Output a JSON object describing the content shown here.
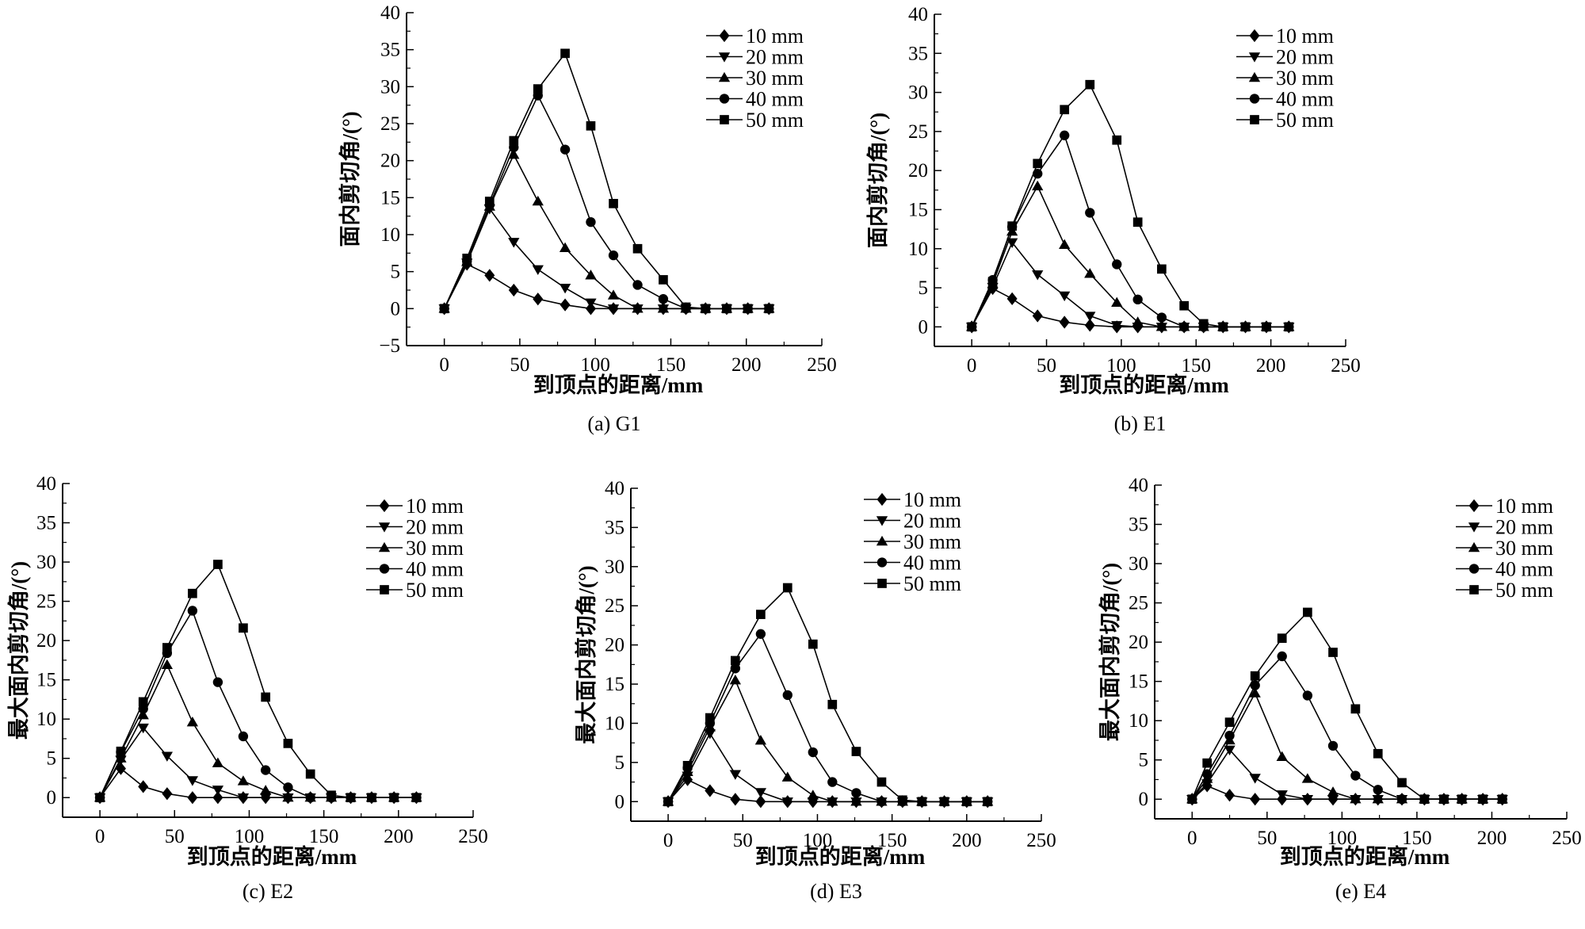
{
  "chart_data": [
    {
      "type": "line",
      "title": "(a) G1",
      "xlabel": "到顶点的距离/mm",
      "ylabel": "面内剪切角/(°)",
      "xlim": [
        -25,
        250
      ],
      "ylim": [
        -5,
        40
      ],
      "xticks": [
        0,
        50,
        100,
        150,
        200,
        250
      ],
      "yticks": [
        -5,
        0,
        5,
        10,
        15,
        20,
        25,
        30,
        35,
        40
      ],
      "legend": "top-right",
      "x": [
        0,
        15,
        30,
        46,
        62,
        80,
        97,
        112,
        128,
        145,
        160,
        173,
        187,
        201,
        215
      ],
      "series": [
        {
          "name": "10 mm",
          "marker": "diamond",
          "values": [
            0,
            6,
            4.5,
            2.5,
            1.3,
            0.5,
            0,
            0,
            0,
            0,
            0,
            0,
            0,
            0,
            0
          ]
        },
        {
          "name": "20 mm",
          "marker": "triangle-down",
          "values": [
            0,
            6.2,
            13.5,
            9,
            5.3,
            2.8,
            0.8,
            0,
            0,
            0,
            0,
            0,
            0,
            0,
            0
          ]
        },
        {
          "name": "30 mm",
          "marker": "triangle-up",
          "values": [
            0,
            6.3,
            13.8,
            20.8,
            14.5,
            8.2,
            4.5,
            1.8,
            0,
            0,
            0,
            0,
            0,
            0,
            0
          ]
        },
        {
          "name": "40 mm",
          "marker": "circle",
          "values": [
            0,
            6.4,
            14,
            21.8,
            28.8,
            21.5,
            11.7,
            7.2,
            3.2,
            1.3,
            0,
            0,
            0,
            0,
            0
          ]
        },
        {
          "name": "50 mm",
          "marker": "square",
          "values": [
            0,
            6.8,
            14.5,
            22.7,
            29.7,
            34.5,
            24.7,
            14.2,
            8.1,
            3.9,
            0.2,
            0,
            0,
            0,
            0
          ]
        }
      ]
    },
    {
      "type": "line",
      "title": "(b) E1",
      "xlabel": "到顶点的距离/mm",
      "ylabel": "面内剪切角/(°)",
      "xlim": [
        -25,
        250
      ],
      "ylim": [
        -2.5,
        40
      ],
      "xticks": [
        0,
        50,
        100,
        150,
        200,
        250
      ],
      "yticks": [
        0,
        5,
        10,
        15,
        20,
        25,
        30,
        35,
        40
      ],
      "legend": "top-right",
      "x": [
        0,
        14,
        27,
        44,
        62,
        79,
        97,
        111,
        127,
        142,
        155,
        168,
        183,
        197,
        212
      ],
      "series": [
        {
          "name": "10 mm",
          "marker": "diamond",
          "values": [
            0,
            4.9,
            3.6,
            1.4,
            0.6,
            0.2,
            0,
            0,
            0,
            0,
            0,
            0,
            0,
            0,
            0
          ]
        },
        {
          "name": "20 mm",
          "marker": "triangle-down",
          "values": [
            0,
            5.1,
            10.8,
            6.7,
            4,
            1.4,
            0.2,
            0,
            0,
            0,
            0,
            0,
            0,
            0,
            0
          ]
        },
        {
          "name": "30 mm",
          "marker": "triangle-up",
          "values": [
            0,
            5.5,
            12.2,
            18,
            10.5,
            6.8,
            3.1,
            0.6,
            0,
            0,
            0,
            0,
            0,
            0,
            0
          ]
        },
        {
          "name": "40 mm",
          "marker": "circle",
          "values": [
            0,
            6,
            12.8,
            19.6,
            24.5,
            14.6,
            8,
            3.5,
            1.2,
            0,
            0,
            0,
            0,
            0,
            0
          ]
        },
        {
          "name": "50 mm",
          "marker": "square",
          "values": [
            0,
            5.8,
            12.9,
            20.9,
            27.8,
            31,
            23.9,
            13.4,
            7.4,
            2.7,
            0.4,
            0,
            0,
            0,
            0
          ]
        }
      ]
    },
    {
      "type": "line",
      "title": "(c) E2",
      "xlabel": "到顶点的距离/mm",
      "ylabel": "最大面内剪切角/(°)",
      "xlim": [
        -25,
        250
      ],
      "ylim": [
        -2.5,
        40
      ],
      "xticks": [
        0,
        50,
        100,
        150,
        200,
        250
      ],
      "yticks": [
        0,
        5,
        10,
        15,
        20,
        25,
        30,
        35,
        40
      ],
      "legend": "top-right",
      "x": [
        0,
        14,
        29,
        45,
        62,
        79,
        96,
        111,
        126,
        141,
        155,
        168,
        182,
        197,
        212
      ],
      "series": [
        {
          "name": "10 mm",
          "marker": "diamond",
          "values": [
            0,
            3.7,
            1.4,
            0.5,
            0,
            0,
            0,
            0,
            0,
            0,
            0,
            0,
            0,
            0,
            0
          ]
        },
        {
          "name": "20 mm",
          "marker": "triangle-down",
          "values": [
            0,
            4.8,
            8.9,
            5.3,
            2.2,
            1,
            0,
            0,
            0,
            0,
            0,
            0,
            0,
            0,
            0
          ]
        },
        {
          "name": "30 mm",
          "marker": "triangle-up",
          "values": [
            0,
            5,
            10.5,
            16.9,
            9.6,
            4.4,
            2.1,
            0.9,
            0,
            0,
            0,
            0,
            0,
            0,
            0
          ]
        },
        {
          "name": "40 mm",
          "marker": "circle",
          "values": [
            0,
            5.8,
            11.3,
            18.4,
            23.8,
            14.7,
            7.8,
            3.5,
            1.3,
            0,
            0,
            0,
            0,
            0,
            0
          ]
        },
        {
          "name": "50 mm",
          "marker": "square",
          "values": [
            0,
            5.9,
            12.2,
            19.1,
            26,
            29.7,
            21.6,
            12.8,
            6.9,
            3,
            0.3,
            0,
            0,
            0,
            0
          ]
        }
      ]
    },
    {
      "type": "line",
      "title": "(d) E3",
      "xlabel": "到顶点的距离/mm",
      "ylabel": "最大面内剪切角/(°)",
      "xlim": [
        -25,
        250
      ],
      "ylim": [
        -2.5,
        40
      ],
      "xticks": [
        0,
        50,
        100,
        150,
        200,
        250
      ],
      "yticks": [
        0,
        5,
        10,
        15,
        20,
        25,
        30,
        35,
        40
      ],
      "legend": "top-right",
      "x": [
        0,
        13,
        28,
        45,
        62,
        80,
        97,
        110,
        126,
        143,
        157,
        170,
        185,
        200,
        214
      ],
      "series": [
        {
          "name": "10 mm",
          "marker": "diamond",
          "values": [
            0,
            2.8,
            1.4,
            0.3,
            0,
            0,
            0,
            0,
            0,
            0,
            0,
            0,
            0,
            0,
            0
          ]
        },
        {
          "name": "20 mm",
          "marker": "triangle-down",
          "values": [
            0,
            3.3,
            8.7,
            3.5,
            1.2,
            0,
            0,
            0,
            0,
            0,
            0,
            0,
            0,
            0,
            0
          ]
        },
        {
          "name": "30 mm",
          "marker": "triangle-up",
          "values": [
            0,
            3.8,
            9.5,
            15.5,
            7.8,
            3.1,
            0.8,
            0,
            0,
            0,
            0,
            0,
            0,
            0,
            0
          ]
        },
        {
          "name": "40 mm",
          "marker": "circle",
          "values": [
            0,
            4.3,
            10,
            17,
            21.4,
            13.6,
            6.3,
            2.5,
            1.1,
            0,
            0,
            0,
            0,
            0,
            0
          ]
        },
        {
          "name": "50 mm",
          "marker": "square",
          "values": [
            0,
            4.6,
            10.7,
            18,
            23.9,
            27.3,
            20.1,
            12.4,
            6.4,
            2.5,
            0.2,
            0,
            0,
            0,
            0
          ]
        }
      ]
    },
    {
      "type": "line",
      "title": "(e) E4",
      "xlabel": "到顶点的距离/mm",
      "ylabel": "最大面内剪切角/(°)",
      "xlim": [
        -25,
        250
      ],
      "ylim": [
        -2.5,
        40
      ],
      "xticks": [
        0,
        50,
        100,
        150,
        200,
        250
      ],
      "yticks": [
        0,
        5,
        10,
        15,
        20,
        25,
        30,
        35,
        40
      ],
      "legend": "top-right",
      "x": [
        0,
        10,
        25,
        42,
        60,
        77,
        94,
        109,
        124,
        140,
        155,
        168,
        180,
        194,
        207
      ],
      "series": [
        {
          "name": "10 mm",
          "marker": "diamond",
          "values": [
            0,
            1.7,
            0.5,
            0,
            0,
            0,
            0,
            0,
            0,
            0,
            0,
            0,
            0,
            0,
            0
          ]
        },
        {
          "name": "20 mm",
          "marker": "triangle-down",
          "values": [
            0,
            2,
            6.3,
            2.7,
            0.6,
            0,
            0,
            0,
            0,
            0,
            0,
            0,
            0,
            0,
            0
          ]
        },
        {
          "name": "30 mm",
          "marker": "triangle-up",
          "values": [
            0,
            2.6,
            7.5,
            13.5,
            5.4,
            2.6,
            0.9,
            0,
            0,
            0,
            0,
            0,
            0,
            0,
            0
          ]
        },
        {
          "name": "40 mm",
          "marker": "circle",
          "values": [
            0,
            3.2,
            8.1,
            14.5,
            18.2,
            13.2,
            6.8,
            3,
            1.2,
            0,
            0,
            0,
            0,
            0,
            0
          ]
        },
        {
          "name": "50 mm",
          "marker": "square",
          "values": [
            0,
            4.6,
            9.8,
            15.7,
            20.5,
            23.8,
            18.7,
            11.5,
            5.8,
            2.1,
            0,
            0,
            0,
            0,
            0
          ]
        }
      ]
    }
  ]
}
